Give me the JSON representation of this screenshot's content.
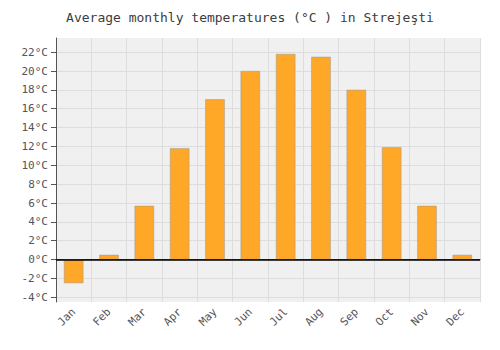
{
  "chart_data": {
    "type": "bar",
    "title": "Average monthly temperatures (°C ) in Strejeşti",
    "categories": [
      "Jan",
      "Feb",
      "Mar",
      "Apr",
      "May",
      "Jun",
      "Jul",
      "Aug",
      "Sep",
      "Oct",
      "Nov",
      "Dec"
    ],
    "values": [
      -2.5,
      0.5,
      5.7,
      11.8,
      17.0,
      20.0,
      21.8,
      21.5,
      18.0,
      11.9,
      5.7,
      0.5
    ],
    "color": "#FFA726",
    "ylim": [
      -4.5,
      23.5
    ],
    "yticks": [
      {
        "value": -4,
        "label": "-4°C"
      },
      {
        "value": -2,
        "label": "-2°C"
      },
      {
        "value": 0,
        "label": "0°C"
      },
      {
        "value": 2,
        "label": "2°C"
      },
      {
        "value": 4,
        "label": "4°C"
      },
      {
        "value": 6,
        "label": "6°C"
      },
      {
        "value": 8,
        "label": "8°C"
      },
      {
        "value": 10,
        "label": "10°C"
      },
      {
        "value": 12,
        "label": "12°C"
      },
      {
        "value": 14,
        "label": "14°C"
      },
      {
        "value": 16,
        "label": "16°C"
      },
      {
        "value": 18,
        "label": "18°C"
      },
      {
        "value": 20,
        "label": "20°C"
      },
      {
        "value": 22,
        "label": "22°C"
      }
    ],
    "grid": true
  }
}
